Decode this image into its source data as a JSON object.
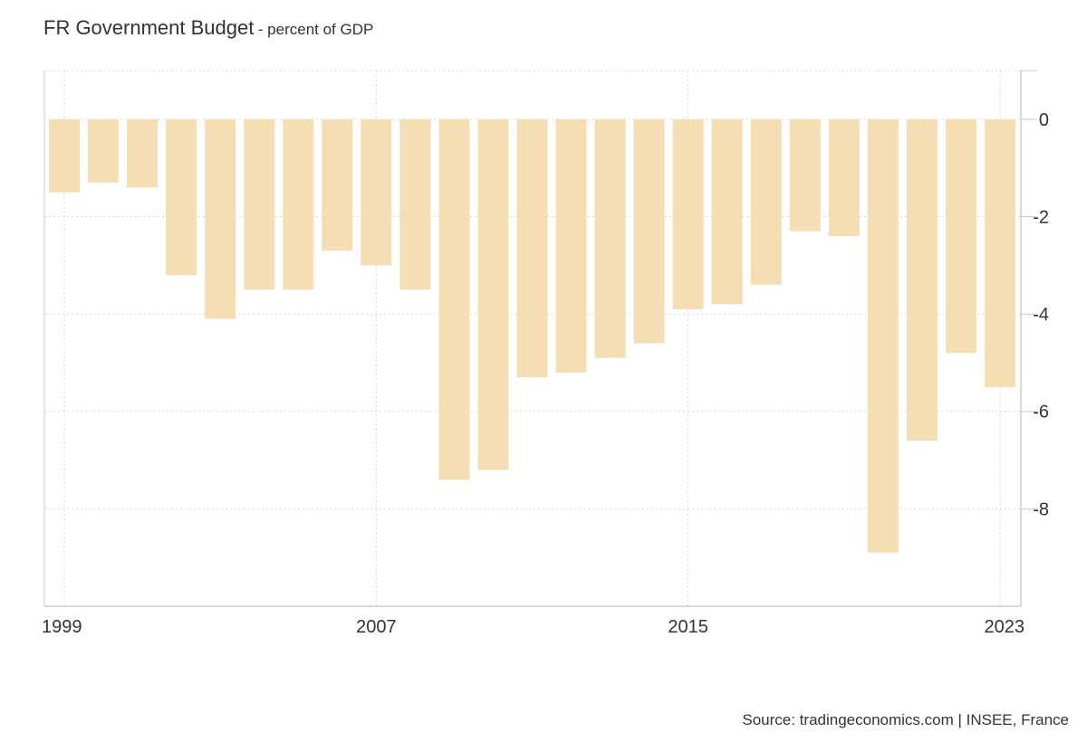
{
  "title": "FR Government Budget",
  "subtitle": "- percent of GDP",
  "source": "Source: tradingeconomics.com | INSEE, France",
  "colors": {
    "bar": "#f5deb3",
    "grid": "#d9d9d9",
    "axis": "#cccccc",
    "text": "#333333"
  },
  "chart_data": {
    "type": "bar",
    "title": "FR Government Budget",
    "subtitle": "- percent of GDP",
    "xlabel": "",
    "ylabel": "",
    "categories": [
      "1999",
      "2000",
      "2001",
      "2002",
      "2003",
      "2004",
      "2005",
      "2006",
      "2007",
      "2008",
      "2009",
      "2010",
      "2011",
      "2012",
      "2013",
      "2014",
      "2015",
      "2016",
      "2017",
      "2018",
      "2019",
      "2020",
      "2021",
      "2022",
      "2023"
    ],
    "values": [
      -1.5,
      -1.3,
      -1.4,
      -3.2,
      -4.1,
      -3.5,
      -3.5,
      -2.7,
      -3.0,
      -3.5,
      -7.4,
      -7.2,
      -5.3,
      -5.2,
      -4.9,
      -4.6,
      -3.9,
      -3.8,
      -3.4,
      -2.3,
      -2.4,
      -8.9,
      -6.6,
      -4.8,
      -5.5
    ],
    "ylim": [
      -10,
      1
    ],
    "yticks": [
      0,
      -2,
      -4,
      -6,
      -8
    ],
    "ytick_labels": [
      "0",
      "-2",
      "-4",
      "-6",
      "-8"
    ],
    "xtick_labels": [
      "1999",
      "2007",
      "2015",
      "2023"
    ],
    "grid": true,
    "y_axis_side": "right"
  }
}
